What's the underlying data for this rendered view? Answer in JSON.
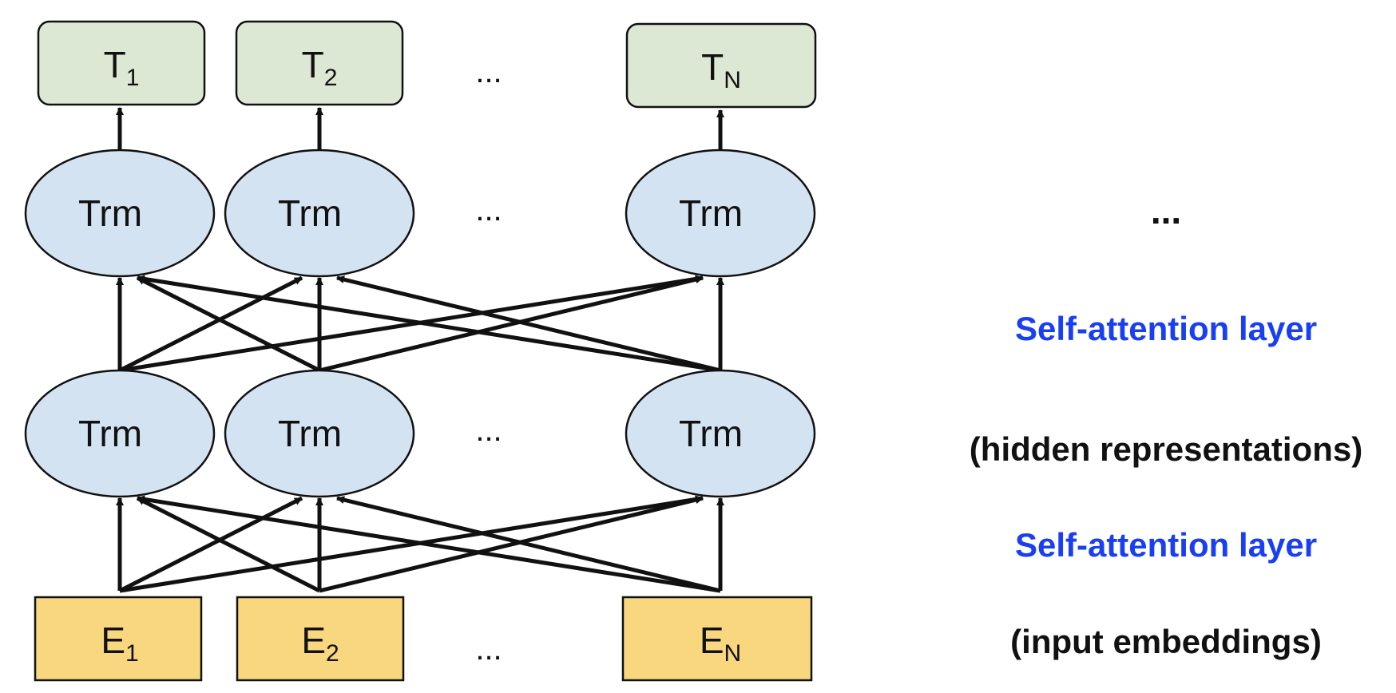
{
  "outputs": [
    {
      "base": "T",
      "sub": "1"
    },
    {
      "base": "T",
      "sub": "2"
    },
    {
      "base": "T",
      "sub": "N"
    }
  ],
  "upper_layer": [
    {
      "label": "Trm"
    },
    {
      "label": "Trm"
    },
    {
      "label": "Trm"
    }
  ],
  "lower_layer": [
    {
      "label": "Trm"
    },
    {
      "label": "Trm"
    },
    {
      "label": "Trm"
    }
  ],
  "inputs": [
    {
      "base": "E",
      "sub": "1"
    },
    {
      "base": "E",
      "sub": "2"
    },
    {
      "base": "E",
      "sub": "N"
    }
  ],
  "ellipsis": {
    "symbol": "..."
  },
  "side_labels": {
    "top": "...",
    "attention_upper": "Self-attention layer",
    "hidden": "(hidden representations)",
    "attention_lower": "Self-attention layer",
    "embeddings": "(input embeddings)"
  },
  "colors": {
    "output_fill": "#DDE8D4",
    "trm_fill": "#D4E3F1",
    "input_fill": "#F9D77E",
    "stroke": "#111111",
    "accent_blue": "#1A3FF2",
    "text_dark": "#111111"
  }
}
